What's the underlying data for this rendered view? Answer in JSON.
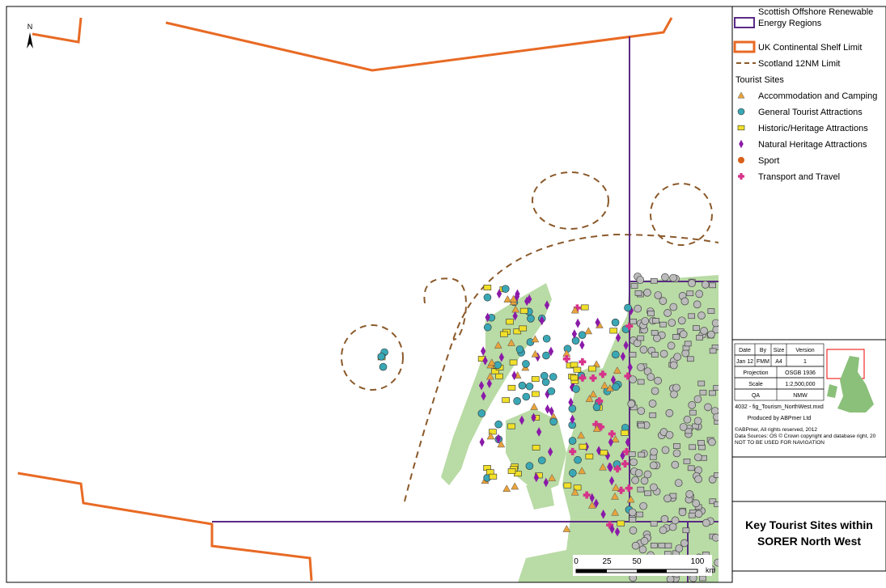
{
  "map": {
    "north_label": "N",
    "scale_bar": {
      "labels": [
        "0",
        "25",
        "50",
        "100"
      ],
      "unit": "km"
    }
  },
  "legend": {
    "boundaries": [
      "Scottish Offshore Renewable",
      "Energy Regions",
      "UK Continental Shelf Limit",
      "Scotland 12NM Limit"
    ],
    "section_title": "Tourist Sites",
    "items": [
      "Accommodation and Camping",
      "General Tourist Attractions",
      "Historic/Heritage Attractions",
      "Natural Heritage Attractions",
      "Sport",
      "Transport and Travel"
    ]
  },
  "metadata": {
    "rows": [
      [
        "Date",
        "By",
        "Size",
        "Version"
      ],
      [
        "Jan 12",
        "FMM",
        "A4",
        "1"
      ],
      [
        "Projection",
        "OSGB 1936"
      ],
      [
        "Scale",
        "1:2,500,000"
      ],
      [
        "QA",
        "NMW"
      ]
    ],
    "file": "4032 - fig_Tourism_NorthWest.mxd",
    "producer": "Produced by ABPmer Ltd",
    "notes": [
      "©ABPmer, All rights reserved, 2012",
      "Data Sources: OS © Crown copyright and database right, 20",
      "NOT TO BE USED FOR NAVIGATION"
    ]
  },
  "title_box": [
    "Key Tourist Sites within",
    "SORER North West"
  ]
}
